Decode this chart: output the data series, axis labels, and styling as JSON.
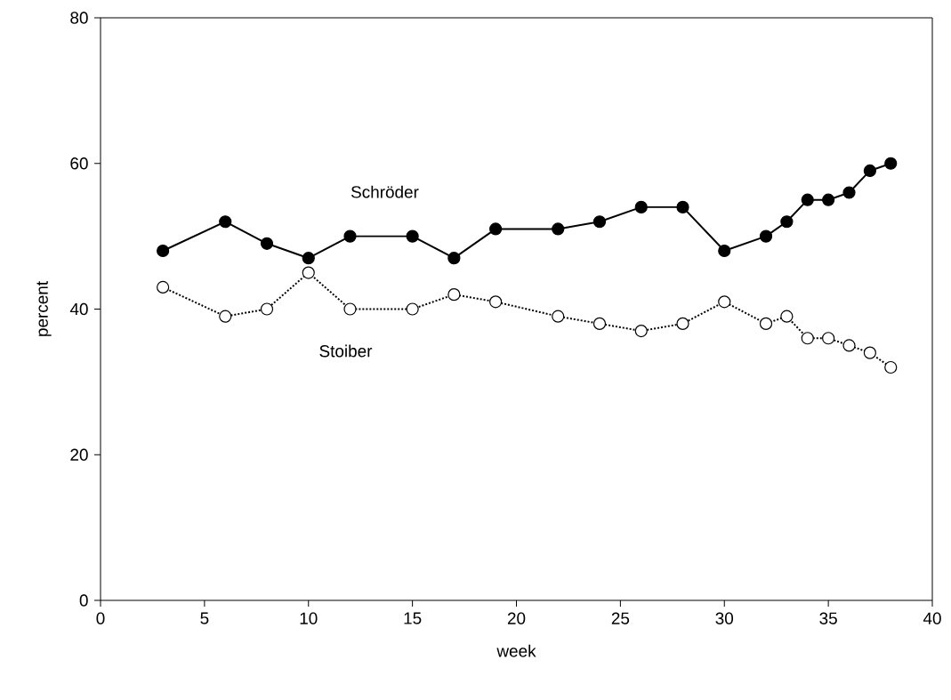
{
  "chart_data": {
    "type": "line",
    "xlabel": "week",
    "ylabel": "percent",
    "x": [
      3,
      6,
      8,
      10,
      12,
      15,
      17,
      19,
      22,
      24,
      26,
      28,
      30,
      32,
      33,
      34,
      35,
      36,
      37,
      38
    ],
    "series": [
      {
        "name": "Schröder",
        "color": "#000000",
        "line_style": "solid",
        "values": [
          48,
          52,
          49,
          47,
          50,
          50,
          47,
          51,
          51,
          52,
          54,
          54,
          48,
          50,
          52,
          55,
          55,
          56,
          59,
          60
        ]
      },
      {
        "name": "Stoiber",
        "color": "#000000",
        "line_style": "dotted",
        "values": [
          43,
          39,
          40,
          45,
          40,
          40,
          42,
          41,
          39,
          38,
          37,
          38,
          41,
          38,
          39,
          36,
          36,
          35,
          34,
          32
        ]
      }
    ],
    "xlim": [
      0,
      40
    ],
    "xticks": [
      0,
      5,
      10,
      15,
      20,
      25,
      30,
      35,
      40
    ],
    "ylim": [
      0,
      80
    ],
    "yticks": [
      0,
      20,
      40,
      60,
      80
    ],
    "grid": false,
    "legend": false,
    "marker": "circle"
  }
}
